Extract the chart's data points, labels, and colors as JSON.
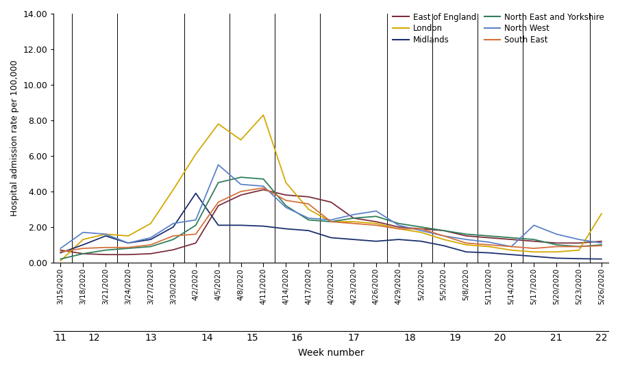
{
  "regions": [
    "East of England",
    "London",
    "Midlands",
    "North East and Yorkshire",
    "North West",
    "South East"
  ],
  "legend_order": [
    "East of England",
    "London",
    "Midlands",
    "North East and Yorkshire",
    "North West",
    "South East"
  ],
  "colors": {
    "East of England": "#7B2D3A",
    "London": "#D4A800",
    "Midlands": "#1A2F6E",
    "North East and Yorkshire": "#2E7D5A",
    "North West": "#5B82C8",
    "South East": "#D4703A"
  },
  "dates": [
    "3/15/2020",
    "3/18/2020",
    "3/21/2020",
    "3/24/2020",
    "3/27/2020",
    "3/30/2020",
    "4/2/2020",
    "4/5/2020",
    "4/8/2020",
    "4/11/2020",
    "4/14/2020",
    "4/17/2020",
    "4/20/2020",
    "4/23/2020",
    "4/26/2020",
    "4/29/2020",
    "5/2/2020",
    "5/5/2020",
    "5/8/2020",
    "5/11/2020",
    "5/14/2020",
    "5/17/2020",
    "5/20/2020",
    "5/23/2020",
    "5/26/2020"
  ],
  "week_numbers": [
    11,
    12,
    12,
    13,
    13,
    13,
    14,
    14,
    15,
    15,
    16,
    16,
    17,
    17,
    17,
    18,
    18,
    19,
    19,
    20,
    20,
    21,
    21,
    21,
    22
  ],
  "data": {
    "East of England": [
      0.7,
      0.5,
      0.45,
      0.45,
      0.5,
      0.72,
      1.1,
      3.2,
      3.8,
      4.1,
      3.8,
      3.7,
      3.4,
      2.5,
      2.3,
      2.0,
      1.9,
      1.8,
      1.5,
      1.4,
      1.3,
      1.2,
      1.1,
      1.1,
      1.2
    ],
    "London": [
      0.1,
      1.3,
      1.6,
      1.5,
      2.2,
      4.1,
      6.1,
      7.8,
      6.9,
      8.3,
      4.5,
      3.0,
      2.3,
      2.3,
      2.2,
      1.9,
      1.7,
      1.3,
      1.0,
      0.9,
      0.7,
      0.6,
      0.6,
      0.7,
      2.75
    ],
    "Midlands": [
      0.55,
      1.0,
      1.5,
      1.1,
      1.3,
      2.0,
      3.9,
      2.1,
      2.1,
      2.05,
      1.9,
      1.8,
      1.4,
      1.3,
      1.2,
      1.3,
      1.2,
      0.95,
      0.6,
      0.55,
      0.45,
      0.35,
      0.25,
      0.22,
      0.2
    ],
    "North East and Yorkshire": [
      0.2,
      0.5,
      0.7,
      0.8,
      0.9,
      1.3,
      2.1,
      4.5,
      4.8,
      4.7,
      3.2,
      2.4,
      2.3,
      2.5,
      2.6,
      2.2,
      2.0,
      1.8,
      1.6,
      1.5,
      1.4,
      1.3,
      1.0,
      0.9,
      1.0
    ],
    "North West": [
      0.8,
      1.7,
      1.6,
      1.1,
      1.4,
      2.2,
      2.4,
      5.5,
      4.4,
      4.3,
      3.1,
      2.5,
      2.4,
      2.7,
      2.9,
      2.1,
      1.8,
      1.5,
      1.3,
      1.15,
      0.9,
      2.1,
      1.6,
      1.3,
      1.1
    ],
    "South East": [
      0.6,
      0.8,
      0.85,
      0.85,
      1.0,
      1.5,
      1.6,
      3.4,
      4.0,
      4.2,
      3.5,
      3.3,
      2.3,
      2.2,
      2.1,
      1.9,
      1.9,
      1.5,
      1.1,
      1.0,
      0.9,
      0.8,
      0.9,
      0.9,
      0.95
    ]
  },
  "ylabel": "Hospital admission rate per 100,000",
  "xlabel": "Week number",
  "ylim": [
    0,
    14.0
  ],
  "yticks": [
    0.0,
    2.0,
    4.0,
    6.0,
    8.0,
    10.0,
    12.0,
    14.0
  ],
  "ytick_labels": [
    "0.00",
    "2.00",
    "4.00",
    "6.00",
    "8.00",
    "10.00",
    "12.00",
    "14.00"
  ]
}
